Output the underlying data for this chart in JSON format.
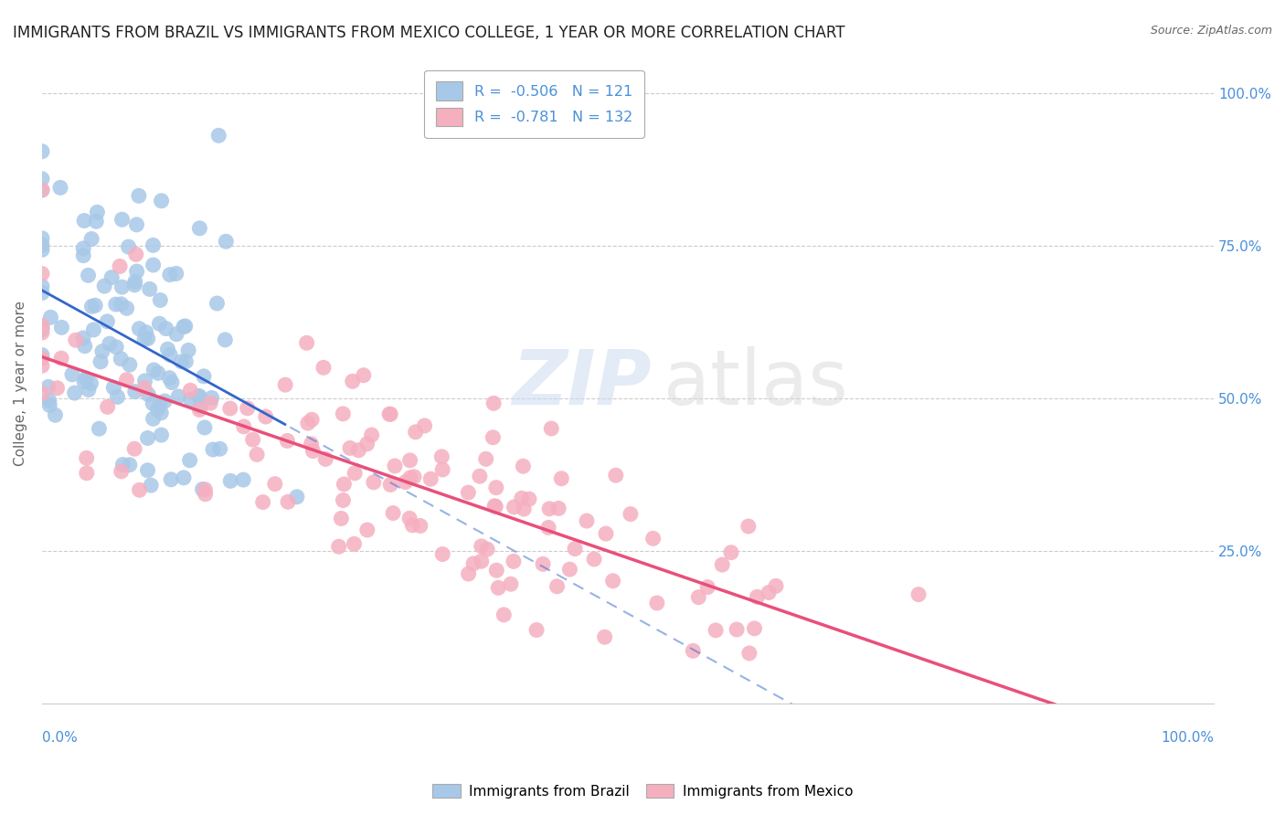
{
  "title": "IMMIGRANTS FROM BRAZIL VS IMMIGRANTS FROM MEXICO COLLEGE, 1 YEAR OR MORE CORRELATION CHART",
  "source": "Source: ZipAtlas.com",
  "ylabel": "College, 1 year or more",
  "legend_brazil_R": "-0.506",
  "legend_brazil_N": "121",
  "legend_mexico_R": "-0.781",
  "legend_mexico_N": "132",
  "brazil_color": "#a8c8e8",
  "mexico_color": "#f5b0c0",
  "brazil_line_color": "#3366cc",
  "mexico_line_color": "#e8507a",
  "brazil_seed": 42,
  "mexico_seed": 77,
  "brazil_N": 121,
  "mexico_N": 132,
  "brazil_R": -0.506,
  "mexico_R": -0.781,
  "watermark_zip": "ZIP",
  "watermark_atlas": "atlas",
  "bg_color": "#ffffff",
  "grid_color": "#cccccc",
  "title_color": "#222222",
  "axis_label_color": "#4a90d9",
  "title_fontsize": 12,
  "label_fontsize": 11,
  "source_fontsize": 9
}
